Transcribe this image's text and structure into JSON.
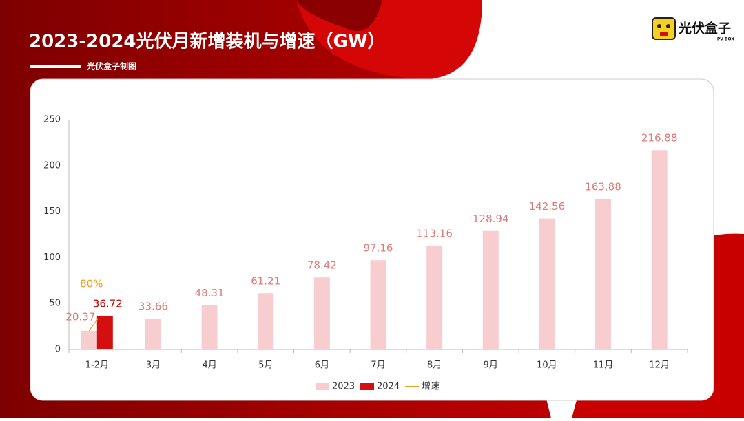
{
  "header": {
    "title": "2023-2024光伏月新增装机与增速（GW）",
    "subtitle": "光伏盒子制图",
    "logo": "光伏盒子",
    "logo_sub": "PV-BOX"
  },
  "chart_data": {
    "type": "bar",
    "categories": [
      "1-2月",
      "3月",
      "4月",
      "5月",
      "6月",
      "7月",
      "8月",
      "9月",
      "10月",
      "11月",
      "12月"
    ],
    "series": [
      {
        "name": "2023",
        "color": "#f8cdd0",
        "label_color": "#e07a78",
        "values": [
          20.37,
          33.66,
          48.31,
          61.21,
          78.42,
          97.16,
          113.16,
          128.94,
          142.56,
          163.88,
          216.88
        ]
      },
      {
        "name": "2024",
        "color": "#d40f0f",
        "label_color": "#c00000",
        "values": [
          36.72,
          null,
          null,
          null,
          null,
          null,
          null,
          null,
          null,
          null,
          null
        ]
      },
      {
        "name": "增速",
        "type": "line",
        "color": "#f0a020",
        "values": [
          80,
          null,
          null,
          null,
          null,
          null,
          null,
          null,
          null,
          null,
          null
        ],
        "value_labels": [
          "80%",
          null,
          null,
          null,
          null,
          null,
          null,
          null,
          null,
          null,
          null
        ]
      }
    ],
    "ylim": [
      0,
      250
    ],
    "yticks": [
      0,
      50,
      100,
      150,
      200,
      250
    ],
    "grid": false,
    "legend": "bottom"
  }
}
